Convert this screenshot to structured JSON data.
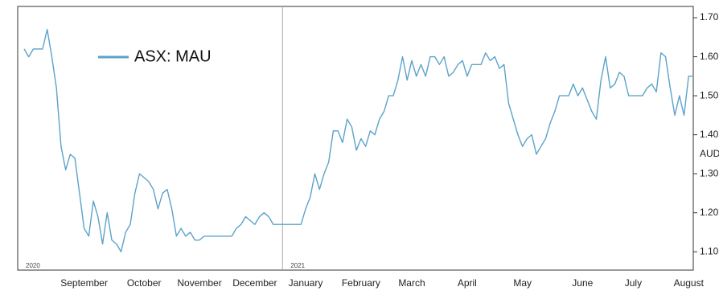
{
  "chart_data": {
    "type": "line",
    "categories": [
      null,
      null,
      null,
      null,
      null,
      null,
      null,
      null,
      null,
      null,
      null,
      null,
      null,
      "September",
      null,
      null,
      null,
      null,
      null,
      null,
      null,
      null,
      null,
      null,
      null,
      null,
      "October",
      null,
      null,
      null,
      null,
      null,
      null,
      null,
      null,
      null,
      null,
      null,
      "November",
      null,
      null,
      null,
      null,
      null,
      null,
      null,
      null,
      null,
      null,
      null,
      "December",
      null,
      null,
      null,
      null,
      null,
      null,
      null,
      null,
      null,
      null,
      "January",
      null,
      null,
      null,
      null,
      null,
      null,
      null,
      null,
      null,
      null,
      null,
      "February",
      null,
      null,
      null,
      null,
      null,
      null,
      null,
      null,
      null,
      null,
      "March",
      null,
      null,
      null,
      null,
      null,
      null,
      null,
      null,
      null,
      null,
      null,
      "April",
      null,
      null,
      null,
      null,
      null,
      null,
      null,
      null,
      null,
      null,
      null,
      "May",
      null,
      null,
      null,
      null,
      null,
      null,
      null,
      null,
      null,
      null,
      null,
      null,
      "June",
      null,
      null,
      null,
      null,
      null,
      null,
      null,
      null,
      null,
      null,
      "July",
      null,
      null,
      null,
      null,
      null,
      null,
      null,
      null,
      null,
      null,
      null,
      "August",
      null
    ],
    "series": [
      {
        "name": "ASX: MAU",
        "color": "#5ba3c9",
        "values": [
          1.62,
          1.6,
          1.62,
          1.62,
          1.62,
          1.67,
          1.6,
          1.52,
          1.37,
          1.31,
          1.35,
          1.34,
          1.25,
          1.16,
          1.14,
          1.23,
          1.19,
          1.12,
          1.2,
          1.13,
          1.12,
          1.1,
          1.15,
          1.17,
          1.25,
          1.3,
          1.29,
          1.28,
          1.26,
          1.21,
          1.25,
          1.26,
          1.21,
          1.14,
          1.16,
          1.14,
          1.15,
          1.13,
          1.13,
          1.14,
          1.14,
          1.14,
          1.14,
          1.14,
          1.14,
          1.14,
          1.16,
          1.17,
          1.19,
          1.18,
          1.17,
          1.19,
          1.2,
          1.19,
          1.17,
          1.17,
          1.17,
          1.17,
          1.17,
          1.17,
          1.17,
          1.21,
          1.24,
          1.3,
          1.26,
          1.3,
          1.33,
          1.41,
          1.41,
          1.38,
          1.44,
          1.42,
          1.36,
          1.39,
          1.37,
          1.41,
          1.4,
          1.44,
          1.46,
          1.5,
          1.5,
          1.54,
          1.6,
          1.54,
          1.59,
          1.55,
          1.58,
          1.55,
          1.6,
          1.6,
          1.58,
          1.6,
          1.55,
          1.56,
          1.58,
          1.59,
          1.55,
          1.58,
          1.58,
          1.58,
          1.61,
          1.59,
          1.6,
          1.57,
          1.58,
          1.48,
          1.44,
          1.4,
          1.37,
          1.39,
          1.4,
          1.35,
          1.37,
          1.39,
          1.43,
          1.46,
          1.5,
          1.5,
          1.5,
          1.53,
          1.5,
          1.52,
          1.49,
          1.46,
          1.44,
          1.54,
          1.6,
          1.52,
          1.53,
          1.56,
          1.55,
          1.5,
          1.5,
          1.5,
          1.5,
          1.52,
          1.53,
          1.51,
          1.61,
          1.6,
          1.52,
          1.45,
          1.5,
          1.45,
          1.55,
          1.55
        ]
      }
    ],
    "ylim": [
      1.053,
      1.729
    ],
    "yticks": [
      {
        "value": 1.1,
        "label": "1.10"
      },
      {
        "value": 1.2,
        "label": "1.20"
      },
      {
        "value": 1.3,
        "label": "1.30"
      },
      {
        "value": 1.4,
        "label": "1.40"
      },
      {
        "value": 1.5,
        "label": "1.50"
      },
      {
        "value": 1.6,
        "label": "1.60"
      },
      {
        "value": 1.7,
        "label": "1.70"
      }
    ],
    "y_axis_label": "AUD",
    "y_axis_side": "right",
    "year_labels": [
      "2020",
      "2021"
    ],
    "legend": "top-left"
  }
}
